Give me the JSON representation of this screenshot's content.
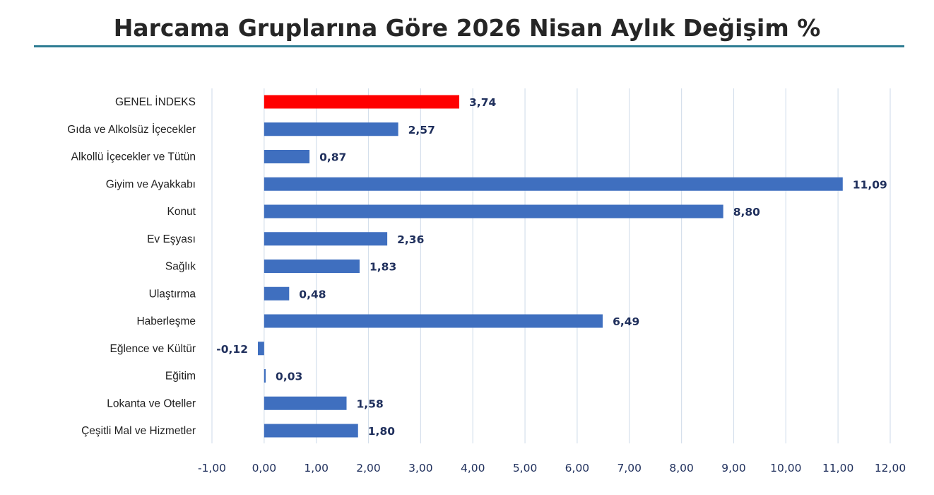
{
  "chart_data": {
    "type": "bar",
    "orientation": "horizontal",
    "title": "Harcama Gruplarına Göre 2026 Nisan Aylık Değişim %",
    "categories": [
      "GENEL İNDEKS",
      "Gıda ve Alkolsüz İçecekler",
      "Alkollü İçecekler ve Tütün",
      "Giyim ve Ayakkabı",
      "Konut",
      "Ev Eşyası",
      "Sağlık",
      "Ulaştırma",
      "Haberleşme",
      "Eğlence ve Kültür",
      "Eğitim",
      "Lokanta ve Oteller",
      "Çeşitli Mal ve Hizmetler"
    ],
    "values": [
      3.74,
      2.57,
      0.87,
      11.09,
      8.8,
      2.36,
      1.83,
      0.48,
      6.49,
      -0.12,
      0.03,
      1.58,
      1.8
    ],
    "value_labels": [
      "3,74",
      "2,57",
      "0,87",
      "11,09",
      "8,80",
      "2,36",
      "1,83",
      "0,48",
      "6,49",
      "-0,12",
      "0,03",
      "1,58",
      "1,80"
    ],
    "xlim": [
      -1,
      12
    ],
    "xticks": [
      -1,
      0,
      1,
      2,
      3,
      4,
      5,
      6,
      7,
      8,
      9,
      10,
      11,
      12
    ],
    "xtick_labels": [
      "-1,00",
      "0,00",
      "1,00",
      "2,00",
      "3,00",
      "4,00",
      "5,00",
      "6,00",
      "7,00",
      "8,00",
      "9,00",
      "10,00",
      "11,00",
      "12,00"
    ],
    "grid": "vertical",
    "legend": "none",
    "highlight_category": "GENEL İNDEKS",
    "colors": {
      "bar": "#3f6fbf",
      "highlight": "#ff0000",
      "grid": "#d5e0ec",
      "title_rule": "#2e7c93"
    }
  }
}
